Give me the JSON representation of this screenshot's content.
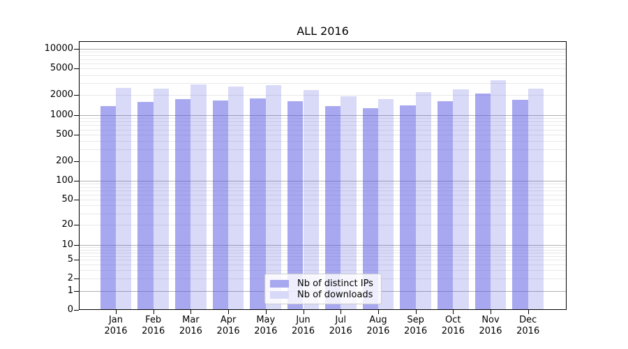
{
  "figure": {
    "title": "ALL 2016"
  },
  "chart_data": {
    "type": "bar",
    "title": "ALL 2016",
    "categories": [
      "Jan 2016",
      "Feb 2016",
      "Mar 2016",
      "Apr 2016",
      "May 2016",
      "Jun 2016",
      "Jul 2016",
      "Aug 2016",
      "Sep 2016",
      "Oct 2016",
      "Nov 2016",
      "Dec 2016"
    ],
    "series": [
      {
        "name": "Nb of distinct IPs",
        "css_color": "rgba(81,81,225,0.5)",
        "flat_color": "#a8a8f0",
        "values": [
          1370,
          1580,
          1720,
          1640,
          1780,
          1615,
          1350,
          1270,
          1400,
          1620,
          2080,
          1680
        ]
      },
      {
        "name": "Nb of downloads",
        "css_color": "rgba(81,81,225,0.22)",
        "flat_color": "#d8d8f8",
        "values": [
          2580,
          2520,
          2890,
          2690,
          2830,
          2350,
          1920,
          1750,
          2215,
          2420,
          3360,
          2510
        ]
      }
    ],
    "xlabel": "",
    "ylabel": "",
    "yscale": "log-like (0, 1, 2, 5 ... 10000)",
    "ylim": [
      0,
      13000
    ],
    "y_ticks": [
      {
        "value": 10000,
        "label": "10000"
      },
      {
        "value": 5000,
        "label": "5000"
      },
      {
        "value": 2000,
        "label": "2000"
      },
      {
        "value": 1000,
        "label": "1000"
      },
      {
        "value": 500,
        "label": "500"
      },
      {
        "value": 200,
        "label": "200"
      },
      {
        "value": 100,
        "label": "100"
      },
      {
        "value": 50,
        "label": "50"
      },
      {
        "value": 20,
        "label": "20"
      },
      {
        "value": 10,
        "label": "10"
      },
      {
        "value": 5,
        "label": "5"
      },
      {
        "value": 2,
        "label": "2"
      },
      {
        "value": 1,
        "label": "1"
      },
      {
        "value": 0,
        "label": "0"
      }
    ],
    "grid": {
      "horizontal": true,
      "major_values": [
        1,
        10,
        100,
        1000,
        10000
      ],
      "major_color": "#b0b0b0",
      "minor_color": "#e8e8e8"
    },
    "legend_position": "lower center"
  },
  "legend": {
    "items": [
      {
        "label": "Nb of distinct IPs",
        "swatch_color": "#a8a8f0"
      },
      {
        "label": "Nb of downloads",
        "swatch_color": "#d8d8f8"
      }
    ]
  }
}
